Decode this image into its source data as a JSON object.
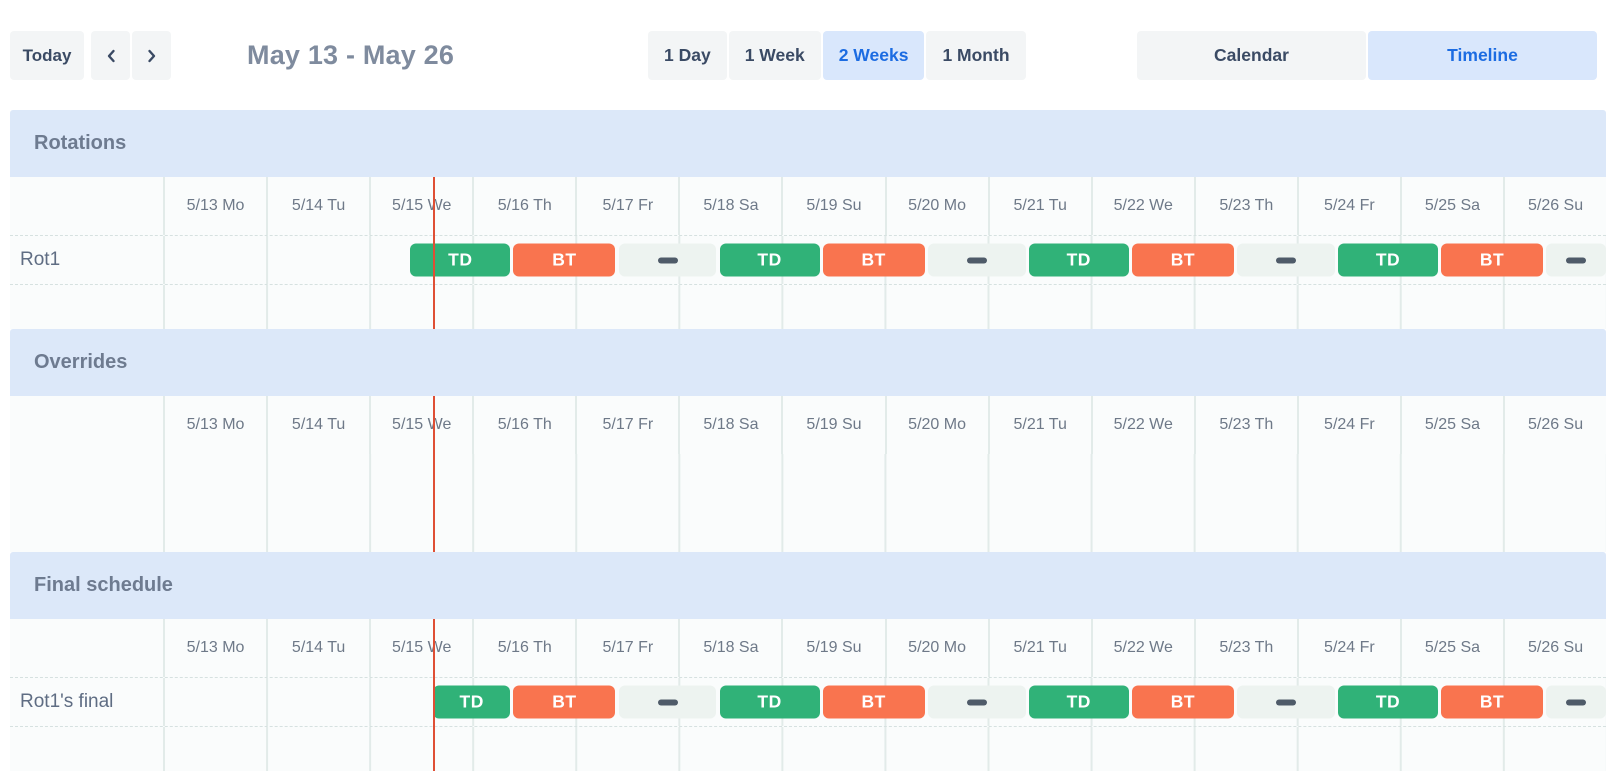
{
  "toolbar": {
    "today_label": "Today",
    "prev_icon": "chevron-left",
    "next_icon": "chevron-right",
    "title": "May 13 - May 26",
    "view_options": [
      {
        "label": "1 Day",
        "selected": false
      },
      {
        "label": "1 Week",
        "selected": false
      },
      {
        "label": "2 Weeks",
        "selected": true
      },
      {
        "label": "1 Month",
        "selected": false
      }
    ],
    "mode_options": [
      {
        "label": "Calendar",
        "selected": false
      },
      {
        "label": "Timeline",
        "selected": true
      }
    ]
  },
  "colors": {
    "shift_td": "#30b278",
    "shift_bt": "#f9744f",
    "gap_bg": "#edf3f0",
    "gap_dash": "#4f5b69",
    "now_line": "#df4f35",
    "selected_bg": "#d9e7fc",
    "selected_text": "#1c6ce2",
    "section_band_bg": "#dce8f9"
  },
  "timeline": {
    "days": [
      "5/13 Mo",
      "5/14 Tu",
      "5/15 We",
      "5/16 Th",
      "5/17 Fr",
      "5/18 Sa",
      "5/19 Su",
      "5/20 Mo",
      "5/21 Tu",
      "5/22 We",
      "5/23 Th",
      "5/24 Fr",
      "5/25 Sa",
      "5/26 Su"
    ],
    "total_days": 14,
    "now_day": 2.62
  },
  "sections": [
    {
      "title": "Rotations",
      "show_dates": true,
      "rows": [
        {
          "label": "Rot1",
          "bars": [
            {
              "kind": "shift",
              "label": "TD",
              "color_key": "shift_td",
              "start": 2.4,
              "end": 3.37
            },
            {
              "kind": "shift",
              "label": "BT",
              "color_key": "shift_bt",
              "start": 3.4,
              "end": 4.39
            },
            {
              "kind": "gap",
              "start": 4.42,
              "end": 5.37
            },
            {
              "kind": "shift",
              "label": "TD",
              "color_key": "shift_td",
              "start": 5.4,
              "end": 6.37
            },
            {
              "kind": "shift",
              "label": "BT",
              "color_key": "shift_bt",
              "start": 6.4,
              "end": 7.39
            },
            {
              "kind": "gap",
              "start": 7.42,
              "end": 8.37
            },
            {
              "kind": "shift",
              "label": "TD",
              "color_key": "shift_td",
              "start": 8.4,
              "end": 9.37
            },
            {
              "kind": "shift",
              "label": "BT",
              "color_key": "shift_bt",
              "start": 9.4,
              "end": 10.39
            },
            {
              "kind": "gap",
              "start": 10.42,
              "end": 11.37
            },
            {
              "kind": "shift",
              "label": "TD",
              "color_key": "shift_td",
              "start": 11.4,
              "end": 12.37
            },
            {
              "kind": "shift",
              "label": "BT",
              "color_key": "shift_bt",
              "start": 12.4,
              "end": 13.39
            },
            {
              "kind": "gap",
              "start": 13.42,
              "end": 14
            }
          ]
        }
      ],
      "trailing_empty_height": 44,
      "body_empty_height": 0
    },
    {
      "title": "Overrides",
      "show_dates": true,
      "rows": [],
      "trailing_empty_height": 0,
      "body_empty_height": 98
    },
    {
      "title": "Final schedule",
      "show_dates": true,
      "rows": [
        {
          "label": "Rot1's final",
          "bars": [
            {
              "kind": "shift",
              "label": "TD",
              "color_key": "shift_td",
              "start": 2.62,
              "end": 3.37
            },
            {
              "kind": "shift",
              "label": "BT",
              "color_key": "shift_bt",
              "start": 3.4,
              "end": 4.39
            },
            {
              "kind": "gap",
              "start": 4.42,
              "end": 5.37
            },
            {
              "kind": "shift",
              "label": "TD",
              "color_key": "shift_td",
              "start": 5.4,
              "end": 6.37
            },
            {
              "kind": "shift",
              "label": "BT",
              "color_key": "shift_bt",
              "start": 6.4,
              "end": 7.39
            },
            {
              "kind": "gap",
              "start": 7.42,
              "end": 8.37
            },
            {
              "kind": "shift",
              "label": "TD",
              "color_key": "shift_td",
              "start": 8.4,
              "end": 9.37
            },
            {
              "kind": "shift",
              "label": "BT",
              "color_key": "shift_bt",
              "start": 9.4,
              "end": 10.39
            },
            {
              "kind": "gap",
              "start": 10.42,
              "end": 11.37
            },
            {
              "kind": "shift",
              "label": "TD",
              "color_key": "shift_td",
              "start": 11.4,
              "end": 12.37
            },
            {
              "kind": "shift",
              "label": "BT",
              "color_key": "shift_bt",
              "start": 12.4,
              "end": 13.39
            },
            {
              "kind": "gap",
              "start": 13.42,
              "end": 14
            }
          ]
        }
      ],
      "trailing_empty_height": 44,
      "body_empty_height": 0
    }
  ]
}
